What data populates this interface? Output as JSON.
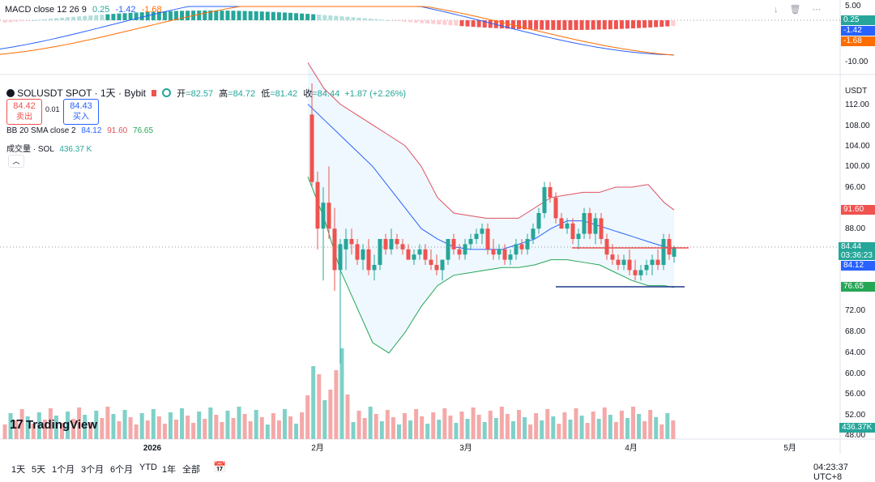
{
  "macd": {
    "title": "MACD close 12 26 9",
    "v1": "0.25",
    "v2": "-1.42",
    "v3": "-1.68",
    "axis_ticks": [
      "5.00",
      "-10.00"
    ],
    "badges": [
      "0.25",
      "-1.42",
      "-1.68"
    ]
  },
  "header": {
    "symbol": "SOLUSDT SPOT · 1天 · Bybit",
    "open_label": "开",
    "open": "=82.57",
    "high_label": "高",
    "high": "=84.72",
    "low_label": "低",
    "low": "=81.42",
    "close_label": "收",
    "close": "=84.44",
    "change": "+1.87 (+2.26%)"
  },
  "trade": {
    "sell_price": "84.42",
    "sell_label": "卖出",
    "spread": "0.01",
    "buy_price": "84.43",
    "buy_label": "买入"
  },
  "bb": {
    "label": "BB 20 SMA close 2",
    "basis": "84.12",
    "upper": "91.60",
    "lower": "76.65"
  },
  "volume": {
    "label": "成交量 · SOL",
    "value": "436.37 K"
  },
  "price_axis": {
    "unit": "USDT",
    "ticks": [
      "112.00",
      "108.00",
      "104.00",
      "100.00",
      "96.00",
      "88.00",
      "72.00",
      "68.00",
      "64.00",
      "60.00",
      "56.00",
      "52.00",
      "48.00"
    ],
    "badge_upper": "91.60",
    "badge_last": "84.44",
    "badge_countdown": "03:36:23",
    "badge_basis": "84.12",
    "badge_lower": "76.65",
    "badge_volume": "436.37K"
  },
  "time_axis": [
    "2026",
    "2月",
    "3月",
    "4月",
    "5月"
  ],
  "timeframes": [
    "1天",
    "5天",
    "1个月",
    "3个月",
    "6个月",
    "YTD",
    "1年",
    "全部"
  ],
  "clock": "04:23:37 UTC+8",
  "logo": "TradingView",
  "colors": {
    "up": "#26a69a",
    "down": "#ef5350",
    "bb_upper": "#e0505e",
    "bb_basis": "#2962ff",
    "bb_lower": "#26a657",
    "macd_line": "#2962ff",
    "signal_line": "#ff6d00"
  }
}
